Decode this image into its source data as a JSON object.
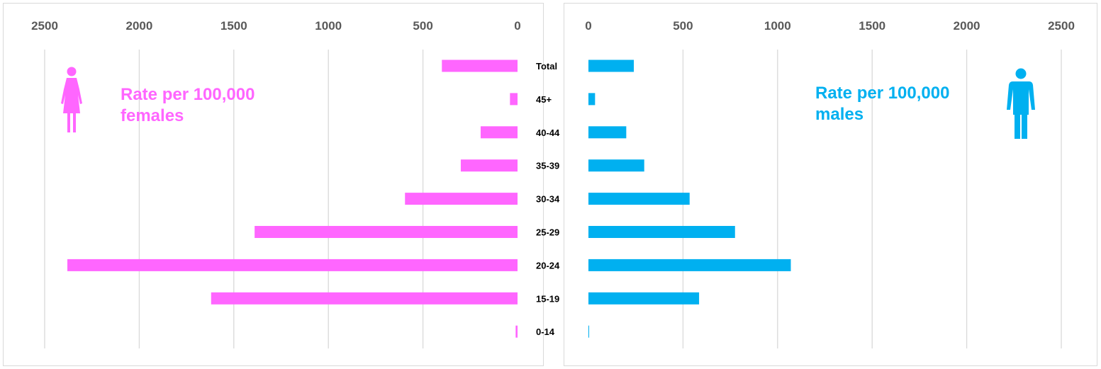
{
  "chart_data": {
    "type": "bar",
    "orientation": "horizontal",
    "categories": [
      "Total",
      "45+",
      "40-44",
      "35-39",
      "30-34",
      "25-29",
      "20-24",
      "15-19",
      "0-14"
    ],
    "series": [
      {
        "values": [
          400,
          40,
          195,
          300,
          595,
          1390,
          2380,
          1620,
          10
        ],
        "color": "#ff66ff"
      },
      {
        "values": [
          240,
          35,
          200,
          295,
          535,
          775,
          1070,
          585,
          3
        ],
        "color": "#00b0f0"
      }
    ],
    "x_ticks": [
      "2500",
      "2000",
      "1500",
      "1000",
      "500",
      "0"
    ],
    "x_ticks_right": [
      "0",
      "500",
      "1000",
      "1500",
      "2000",
      "2500"
    ],
    "xlim": [
      0,
      2500
    ],
    "grid": true,
    "annotations": {
      "female_line1": "Rate per 100,000",
      "female_line2": "females",
      "male_line1": "Rate per 100,000",
      "male_line2": "males"
    },
    "icons": {
      "female": "female-figure-icon",
      "male": "male-figure-icon"
    }
  }
}
